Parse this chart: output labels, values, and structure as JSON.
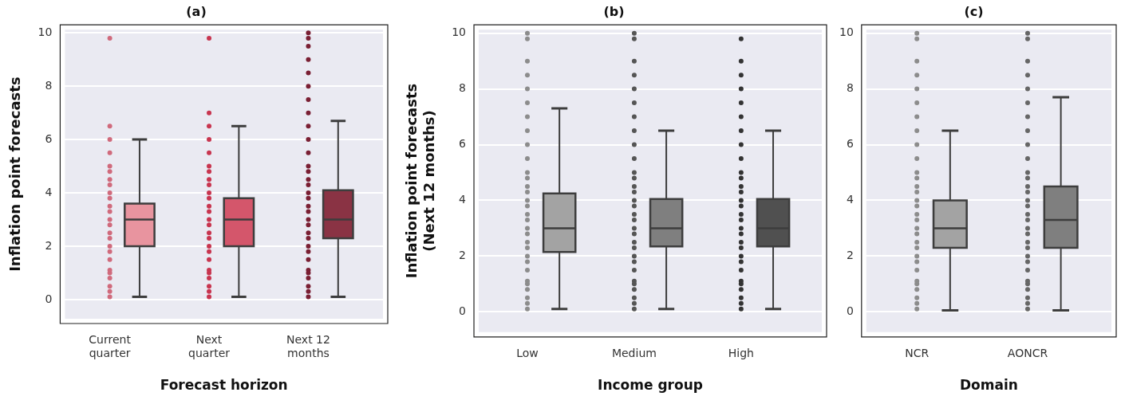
{
  "chart_data": [
    {
      "type": "box",
      "title": "(a)",
      "xlabel": "Forecast horizon",
      "ylabel": "Inflation point forecasts",
      "categories": [
        "Current quarter",
        "Next quarter",
        "Next 12 months"
      ],
      "colors": [
        "#e8949f",
        "#d4566b",
        "#8a3344"
      ],
      "ylim": [
        -0.9,
        10.3
      ],
      "yticks": [
        0,
        2,
        4,
        6,
        8,
        10
      ],
      "grid": "y",
      "boxes": [
        {
          "low": 0.1,
          "q1": 2.0,
          "median": 3.0,
          "q3": 3.6,
          "high": 6.0
        },
        {
          "low": 0.1,
          "q1": 2.0,
          "median": 3.0,
          "q3": 3.8,
          "high": 6.5
        },
        {
          "low": 0.1,
          "q1": 2.3,
          "median": 3.0,
          "q3": 4.1,
          "high": 6.7
        }
      ],
      "series": [
        {
          "type": "scatter",
          "color": "#d06a7c",
          "x": [
            "Current quarter",
            "Current quarter",
            "Current quarter",
            "Current quarter",
            "Current quarter",
            "Current quarter",
            "Current quarter",
            "Current quarter",
            "Current quarter",
            "Current quarter",
            "Current quarter",
            "Current quarter",
            "Current quarter",
            "Current quarter",
            "Current quarter",
            "Current quarter",
            "Current quarter",
            "Current quarter",
            "Current quarter",
            "Current quarter",
            "Current quarter",
            "Current quarter",
            "Current quarter",
            "Current quarter",
            "Current quarter"
          ],
          "values": [
            0.1,
            0.3,
            0.5,
            0.8,
            1.0,
            1.1,
            1.5,
            1.8,
            2.0,
            2.3,
            2.5,
            2.8,
            3.0,
            3.3,
            3.5,
            3.8,
            4.0,
            4.3,
            4.5,
            4.8,
            5.0,
            5.5,
            6.0,
            6.5,
            9.8
          ]
        },
        {
          "type": "scatter",
          "color": "#c8354f",
          "x": [
            "Next quarter",
            "Next quarter",
            "Next quarter",
            "Next quarter",
            "Next quarter",
            "Next quarter",
            "Next quarter",
            "Next quarter",
            "Next quarter",
            "Next quarter",
            "Next quarter",
            "Next quarter",
            "Next quarter",
            "Next quarter",
            "Next quarter",
            "Next quarter",
            "Next quarter",
            "Next quarter",
            "Next quarter",
            "Next quarter",
            "Next quarter",
            "Next quarter",
            "Next quarter",
            "Next quarter",
            "Next quarter",
            "Next quarter"
          ],
          "values": [
            0.1,
            0.3,
            0.5,
            0.8,
            1.0,
            1.1,
            1.5,
            1.8,
            2.0,
            2.3,
            2.5,
            2.8,
            3.0,
            3.3,
            3.5,
            3.8,
            4.0,
            4.3,
            4.5,
            4.8,
            5.0,
            5.5,
            6.0,
            6.5,
            7.0,
            9.8
          ]
        },
        {
          "type": "scatter",
          "color": "#7a1f33",
          "x": [
            "Next 12 months",
            "Next 12 months",
            "Next 12 months",
            "Next 12 months",
            "Next 12 months",
            "Next 12 months",
            "Next 12 months",
            "Next 12 months",
            "Next 12 months",
            "Next 12 months",
            "Next 12 months",
            "Next 12 months",
            "Next 12 months",
            "Next 12 months",
            "Next 12 months",
            "Next 12 months",
            "Next 12 months",
            "Next 12 months",
            "Next 12 months",
            "Next 12 months",
            "Next 12 months",
            "Next 12 months",
            "Next 12 months",
            "Next 12 months",
            "Next 12 months",
            "Next 12 months",
            "Next 12 months",
            "Next 12 months",
            "Next 12 months",
            "Next 12 months",
            "Next 12 months",
            "Next 12 months"
          ],
          "values": [
            0.1,
            0.3,
            0.5,
            0.8,
            1.0,
            1.1,
            1.5,
            1.8,
            2.0,
            2.3,
            2.5,
            2.8,
            3.0,
            3.3,
            3.5,
            3.8,
            4.0,
            4.3,
            4.5,
            4.8,
            5.0,
            5.5,
            6.0,
            6.5,
            7.0,
            7.5,
            8.0,
            8.5,
            9.0,
            9.5,
            9.8,
            10.0
          ]
        }
      ]
    },
    {
      "type": "box",
      "title": "(b)",
      "xlabel": "Income group",
      "ylabel": "Inflation point forecasts\n(Next 12 months)",
      "categories": [
        "Low",
        "Medium",
        "High"
      ],
      "colors": [
        "#a3a3a3",
        "#7f7f7f",
        "#505050"
      ],
      "ylim": [
        -0.9,
        10.3
      ],
      "yticks": [
        0,
        2,
        4,
        6,
        8,
        10
      ],
      "grid": "y",
      "boxes": [
        {
          "low": 0.1,
          "q1": 2.15,
          "median": 3.0,
          "q3": 4.25,
          "high": 7.3
        },
        {
          "low": 0.1,
          "q1": 2.35,
          "median": 3.0,
          "q3": 4.05,
          "high": 6.5
        },
        {
          "low": 0.1,
          "q1": 2.35,
          "median": 3.0,
          "q3": 4.05,
          "high": 6.5
        }
      ],
      "series": [
        {
          "type": "scatter",
          "color": "#8c8c8c",
          "x": [
            "Low",
            "Low",
            "Low",
            "Low",
            "Low",
            "Low",
            "Low",
            "Low",
            "Low",
            "Low",
            "Low",
            "Low",
            "Low",
            "Low",
            "Low",
            "Low",
            "Low",
            "Low",
            "Low",
            "Low",
            "Low",
            "Low",
            "Low",
            "Low",
            "Low",
            "Low",
            "Low",
            "Low",
            "Low",
            "Low",
            "Low"
          ],
          "values": [
            0.1,
            0.3,
            0.5,
            0.8,
            1.0,
            1.1,
            1.5,
            1.8,
            2.0,
            2.3,
            2.5,
            2.8,
            3.0,
            3.3,
            3.5,
            3.8,
            4.0,
            4.3,
            4.5,
            4.8,
            5.0,
            5.5,
            6.0,
            6.5,
            7.0,
            7.5,
            8.0,
            8.5,
            9.0,
            9.8,
            10.0
          ]
        },
        {
          "type": "scatter",
          "color": "#555555",
          "x": [
            "Medium",
            "Medium",
            "Medium",
            "Medium",
            "Medium",
            "Medium",
            "Medium",
            "Medium",
            "Medium",
            "Medium",
            "Medium",
            "Medium",
            "Medium",
            "Medium",
            "Medium",
            "Medium",
            "Medium",
            "Medium",
            "Medium",
            "Medium",
            "Medium",
            "Medium",
            "Medium",
            "Medium",
            "Medium",
            "Medium",
            "Medium",
            "Medium",
            "Medium",
            "Medium",
            "Medium"
          ],
          "values": [
            0.1,
            0.3,
            0.5,
            0.8,
            1.0,
            1.1,
            1.5,
            1.8,
            2.0,
            2.3,
            2.5,
            2.8,
            3.0,
            3.3,
            3.5,
            3.8,
            4.0,
            4.3,
            4.5,
            4.8,
            5.0,
            5.5,
            6.0,
            6.5,
            7.0,
            7.5,
            8.0,
            8.5,
            9.0,
            9.8,
            10.0
          ]
        },
        {
          "type": "scatter",
          "color": "#333333",
          "x": [
            "High",
            "High",
            "High",
            "High",
            "High",
            "High",
            "High",
            "High",
            "High",
            "High",
            "High",
            "High",
            "High",
            "High",
            "High",
            "High",
            "High",
            "High",
            "High",
            "High",
            "High",
            "High",
            "High",
            "High",
            "High",
            "High",
            "High",
            "High",
            "High",
            "High"
          ],
          "values": [
            0.1,
            0.3,
            0.5,
            0.8,
            1.0,
            1.1,
            1.5,
            1.8,
            2.0,
            2.3,
            2.5,
            2.8,
            3.0,
            3.3,
            3.5,
            3.8,
            4.0,
            4.3,
            4.5,
            4.8,
            5.0,
            5.5,
            6.0,
            6.5,
            7.0,
            7.5,
            8.0,
            8.5,
            9.0,
            9.8
          ]
        }
      ]
    },
    {
      "type": "box",
      "title": "(c)",
      "xlabel": "Domain",
      "ylabel": null,
      "categories": [
        "NCR",
        "AONCR"
      ],
      "colors": [
        "#a3a3a3",
        "#7f7f7f"
      ],
      "ylim": [
        -0.9,
        10.3
      ],
      "yticks": [
        0,
        2,
        4,
        6,
        8,
        10
      ],
      "grid": "y",
      "boxes": [
        {
          "low": 0.05,
          "q1": 2.3,
          "median": 3.0,
          "q3": 4.0,
          "high": 6.5
        },
        {
          "low": 0.05,
          "q1": 2.3,
          "median": 3.3,
          "q3": 4.5,
          "high": 7.7
        }
      ],
      "series": [
        {
          "type": "scatter",
          "color": "#8c8c8c",
          "x": [
            "NCR",
            "NCR",
            "NCR",
            "NCR",
            "NCR",
            "NCR",
            "NCR",
            "NCR",
            "NCR",
            "NCR",
            "NCR",
            "NCR",
            "NCR",
            "NCR",
            "NCR",
            "NCR",
            "NCR",
            "NCR",
            "NCR",
            "NCR",
            "NCR",
            "NCR",
            "NCR",
            "NCR",
            "NCR",
            "NCR",
            "NCR",
            "NCR",
            "NCR",
            "NCR",
            "NCR"
          ],
          "values": [
            0.1,
            0.3,
            0.5,
            0.8,
            1.0,
            1.1,
            1.5,
            1.8,
            2.0,
            2.3,
            2.5,
            2.8,
            3.0,
            3.3,
            3.5,
            3.8,
            4.0,
            4.3,
            4.5,
            4.8,
            5.0,
            5.5,
            6.0,
            6.5,
            7.0,
            7.5,
            8.0,
            8.5,
            9.0,
            9.8,
            10.0
          ]
        },
        {
          "type": "scatter",
          "color": "#666666",
          "x": [
            "AONCR",
            "AONCR",
            "AONCR",
            "AONCR",
            "AONCR",
            "AONCR",
            "AONCR",
            "AONCR",
            "AONCR",
            "AONCR",
            "AONCR",
            "AONCR",
            "AONCR",
            "AONCR",
            "AONCR",
            "AONCR",
            "AONCR",
            "AONCR",
            "AONCR",
            "AONCR",
            "AONCR",
            "AONCR",
            "AONCR",
            "AONCR",
            "AONCR",
            "AONCR",
            "AONCR",
            "AONCR",
            "AONCR",
            "AONCR",
            "AONCR"
          ],
          "values": [
            0.1,
            0.3,
            0.5,
            0.8,
            1.0,
            1.1,
            1.5,
            1.8,
            2.0,
            2.3,
            2.5,
            2.8,
            3.0,
            3.3,
            3.5,
            3.8,
            4.0,
            4.3,
            4.5,
            4.8,
            5.0,
            5.5,
            6.0,
            6.5,
            7.0,
            7.5,
            8.0,
            8.5,
            9.0,
            9.8,
            10.0
          ]
        }
      ]
    }
  ]
}
